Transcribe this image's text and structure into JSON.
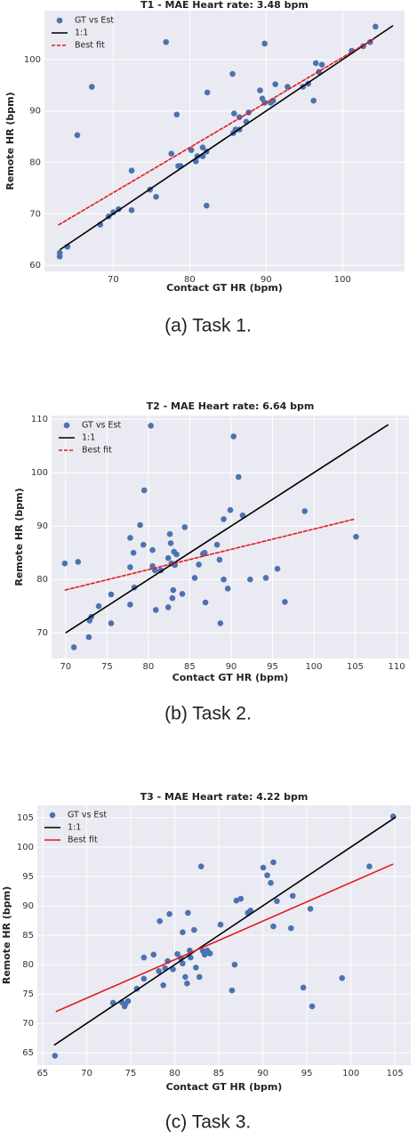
{
  "chart_data": [
    {
      "type": "scatter",
      "title": "T1 - MAE Heart rate: 3.48 bpm",
      "xlabel": "Contact GT HR (bpm)",
      "ylabel": "Remote HR (bpm)",
      "caption": "(a) Task 1.",
      "xlim": [
        61,
        108.1
      ],
      "ylim": [
        58.8,
        109.5
      ],
      "xticks": [
        70,
        80,
        90,
        100
      ],
      "yticks": [
        60,
        70,
        80,
        90,
        100
      ],
      "grid": true,
      "legend": "upper left",
      "series": [
        {
          "name": "GT vs Est",
          "type": "scatter",
          "color": "#4c72b0",
          "x": [
            63.0,
            63.0,
            64.0,
            65.3,
            67.2,
            68.3,
            69.4,
            70.0,
            70.7,
            72.4,
            72.4,
            74.8,
            75.6,
            76.9,
            77.6,
            78.3,
            78.5,
            78.8,
            80.2,
            80.8,
            81.0,
            81.7,
            81.7,
            82.2,
            82.2,
            82.3,
            85.6,
            85.8,
            86.0,
            86.5,
            85.7,
            86.5,
            87.7,
            87.4,
            89.2,
            89.5,
            89.8,
            89.8,
            90.6,
            90.9,
            91.2,
            92.8,
            94.8,
            95.5,
            96.2,
            96.5,
            96.9,
            97.3,
            101.2,
            102.7,
            103.6,
            104.3
          ],
          "values": [
            62.4,
            61.7,
            63.6,
            85.3,
            94.7,
            67.9,
            69.5,
            70.3,
            70.9,
            70.7,
            78.4,
            74.7,
            73.3,
            103.4,
            81.7,
            89.3,
            79.3,
            79.3,
            82.4,
            80.2,
            81.2,
            82.9,
            81.2,
            82.1,
            71.6,
            93.6,
            97.2,
            89.5,
            86.4,
            86.4,
            85.7,
            88.8,
            89.7,
            87.9,
            94.0,
            92.4,
            103.1,
            91.6,
            91.6,
            92.0,
            95.2,
            94.7,
            94.7,
            95.3,
            92.0,
            99.3,
            97.6,
            99.0,
            101.7,
            102.6,
            103.4,
            106.4
          ]
        },
        {
          "name": "1:1",
          "type": "line",
          "color": "#000000",
          "x": [
            63,
            106.6
          ],
          "values": [
            63,
            106.6
          ]
        },
        {
          "name": "Best fit",
          "type": "line",
          "color": "#e41a1c",
          "dashed": true,
          "x": [
            62.8,
            104.2
          ],
          "values": [
            67.8,
            104.1
          ]
        }
      ]
    },
    {
      "type": "scatter",
      "title": "T2 - MAE Heart rate: 6.64 bpm",
      "xlabel": "Contact GT HR (bpm)",
      "ylabel": "Remote HR (bpm)",
      "caption": "(b) Task 2.",
      "xlim": [
        68.3,
        111.5
      ],
      "ylim": [
        65.2,
        110.7
      ],
      "xticks": [
        70,
        75,
        80,
        85,
        90,
        95,
        100,
        105,
        110
      ],
      "yticks": [
        70,
        80,
        90,
        100,
        110
      ],
      "grid": true,
      "legend": "upper left",
      "series": [
        {
          "name": "GT vs Est",
          "type": "scatter",
          "color": "#4c72b0",
          "x": [
            69.9,
            71.0,
            71.5,
            72.8,
            72.9,
            73.1,
            74.0,
            75.5,
            75.5,
            77.8,
            77.8,
            77.8,
            78.2,
            78.3,
            79.0,
            79.4,
            79.5,
            80.3,
            80.5,
            80.8,
            80.5,
            80.9,
            81.5,
            82.4,
            82.4,
            82.6,
            82.7,
            82.8,
            83.0,
            82.9,
            83.1,
            83.2,
            83.4,
            84.1,
            84.4,
            85.6,
            86.1,
            86.6,
            86.8,
            86.9,
            88.3,
            88.7,
            88.6,
            89.1,
            89.1,
            89.6,
            89.9,
            90.3,
            90.9,
            91.4,
            92.3,
            94.2,
            95.6,
            96.5,
            98.9,
            105.1
          ],
          "values": [
            83.0,
            67.3,
            83.3,
            69.2,
            72.3,
            73.0,
            75.0,
            77.2,
            71.8,
            75.3,
            82.3,
            87.8,
            85.0,
            78.5,
            90.2,
            86.5,
            96.7,
            108.8,
            82.5,
            81.7,
            85.5,
            74.3,
            81.7,
            74.8,
            84.0,
            88.5,
            86.8,
            83.0,
            78.0,
            76.5,
            85.2,
            82.7,
            84.7,
            77.3,
            89.8,
            80.3,
            82.8,
            84.8,
            85.0,
            75.7,
            86.5,
            71.8,
            83.7,
            91.3,
            80.0,
            78.3,
            93.0,
            106.8,
            99.2,
            92.0,
            80.0,
            80.3,
            82.0,
            75.8,
            92.8,
            88.0
          ]
        },
        {
          "name": "1:1",
          "type": "line",
          "color": "#000000",
          "x": [
            70,
            109
          ],
          "values": [
            70,
            109
          ]
        },
        {
          "name": "Best fit",
          "type": "line",
          "color": "#e41a1c",
          "dashed": true,
          "x": [
            69.9,
            104.9
          ],
          "values": [
            78,
            91.3
          ]
        }
      ]
    },
    {
      "type": "scatter",
      "title": "T3 - MAE Heart rate: 4.22 bpm",
      "xlabel": "Contact GT HR (bpm)",
      "ylabel": "Remote HR (bpm)",
      "caption": "(c) Task 3.",
      "xlim": [
        64.4,
        106.8
      ],
      "ylim": [
        62.9,
        107.1
      ],
      "xticks": [
        65,
        70,
        75,
        80,
        85,
        90,
        95,
        100,
        105
      ],
      "yticks": [
        65,
        70,
        75,
        80,
        85,
        90,
        95,
        100,
        105
      ],
      "grid": true,
      "legend": "upper left",
      "series": [
        {
          "name": "GT vs Est",
          "type": "scatter",
          "color": "#4c72b0",
          "x": [
            66.4,
            73.0,
            74.0,
            74.4,
            74.7,
            74.3,
            75.7,
            76.5,
            76.5,
            77.6,
            78.2,
            78.3,
            78.7,
            78.9,
            79.2,
            79.4,
            79.8,
            80.3,
            80.7,
            80.9,
            80.9,
            81.2,
            81.4,
            81.5,
            81.7,
            81.8,
            82.2,
            82.4,
            82.8,
            83.0,
            83.2,
            83.4,
            83.7,
            84.0,
            85.2,
            86.5,
            86.8,
            87.0,
            87.5,
            88.3,
            88.6,
            90.05,
            90.5,
            90.9,
            91.2,
            91.6,
            91.2,
            93.4,
            93.2,
            94.6,
            95.4,
            95.6,
            99.0,
            102.1,
            104.8
          ],
          "values": [
            64.5,
            73.5,
            73.6,
            73.3,
            73.8,
            72.9,
            75.9,
            77.6,
            81.2,
            81.7,
            78.9,
            87.4,
            76.5,
            79.4,
            80.6,
            88.6,
            79.2,
            81.8,
            81.1,
            80.2,
            85.5,
            77.9,
            76.8,
            88.8,
            82.4,
            81.2,
            85.9,
            79.5,
            77.9,
            96.7,
            82.3,
            81.7,
            82.4,
            81.9,
            86.8,
            75.6,
            80.0,
            90.9,
            91.2,
            88.8,
            89.2,
            96.5,
            95.2,
            93.9,
            97.4,
            90.8,
            86.5,
            91.7,
            86.2,
            76.1,
            89.5,
            72.9,
            77.7,
            96.7,
            105.2
          ]
        },
        {
          "name": "1:1",
          "type": "line",
          "color": "#000000",
          "x": [
            66.3,
            105.1
          ],
          "values": [
            66.3,
            105.1
          ]
        },
        {
          "name": "Best fit",
          "type": "line",
          "color": "#e41a1c",
          "x": [
            66.5,
            104.8
          ],
          "values": [
            72.0,
            97.1
          ]
        }
      ]
    }
  ]
}
